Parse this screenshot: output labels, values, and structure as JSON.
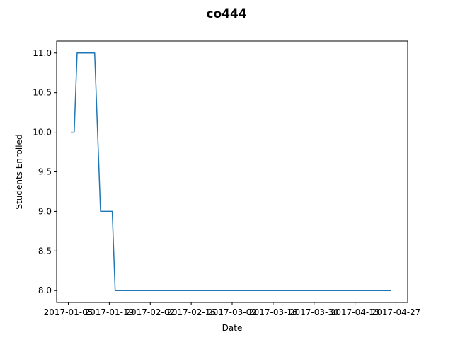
{
  "chart_data": {
    "type": "line",
    "title": "co444",
    "xlabel": "Date",
    "ylabel": "Students Enrolled",
    "xlim": [
      "2017-01-01",
      "2017-05-01"
    ],
    "ylim": [
      7.85,
      11.15
    ],
    "grid": false,
    "legend": "none",
    "x_ticks": [
      "2017-01-05",
      "2017-01-19",
      "2017-02-02",
      "2017-02-16",
      "2017-03-02",
      "2017-03-16",
      "2017-03-30",
      "2017-04-13",
      "2017-04-27"
    ],
    "y_ticks": [
      "8.0",
      "8.5",
      "9.0",
      "9.5",
      "10.0",
      "10.5",
      "11.0"
    ],
    "series": [
      {
        "color": "#1f77b4",
        "x": [
          "2017-01-06",
          "2017-01-07",
          "2017-01-08",
          "2017-01-14",
          "2017-01-15",
          "2017-01-16",
          "2017-01-20",
          "2017-01-21",
          "2017-05-03"
        ],
        "y": [
          10,
          10,
          11,
          11,
          10,
          9,
          9,
          8,
          8
        ]
      }
    ]
  }
}
